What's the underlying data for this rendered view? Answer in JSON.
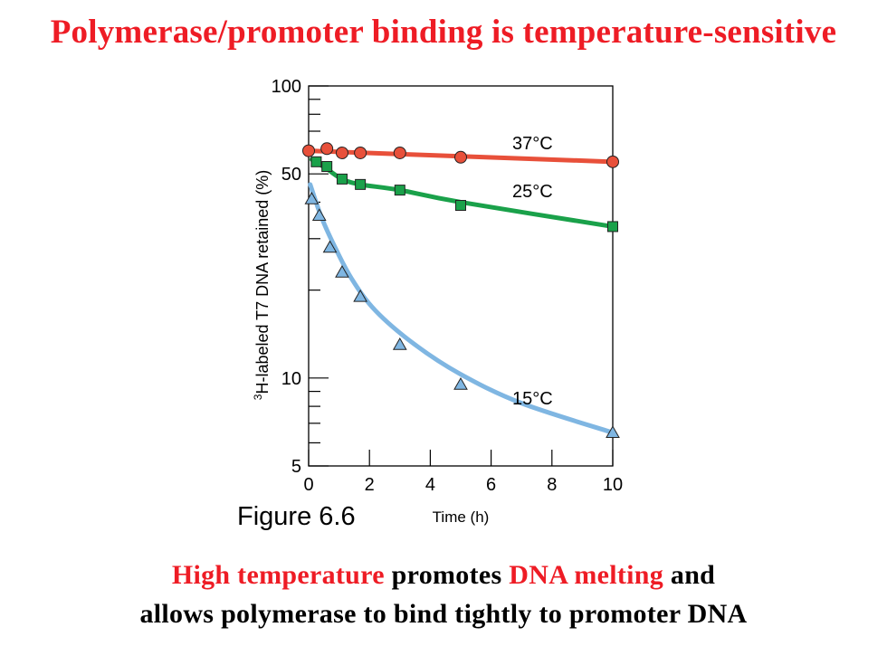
{
  "title": "Polymerase/promoter binding is temperature-sensitive",
  "figure_label": "Figure 6.6",
  "caption": {
    "line1": [
      {
        "text": "High temperature",
        "highlight": true
      },
      {
        "text": " promotes ",
        "highlight": false
      },
      {
        "text": "DNA melting",
        "highlight": true
      },
      {
        "text": " and",
        "highlight": false
      }
    ],
    "line2": "allows polymerase to bind tightly to promoter DNA"
  },
  "colors": {
    "title": "#ee1c25",
    "highlight": "#ee1c25",
    "series_37": "#e8503a",
    "series_25": "#1aa14a",
    "series_15": "#7fb6e2"
  },
  "chart_data": {
    "type": "line",
    "xlabel": "Time (h)",
    "ylabel_superscript": "3",
    "ylabel": "H-labeled T7 DNA retained (%)",
    "xlim": [
      0,
      10
    ],
    "ylim": [
      5,
      100
    ],
    "y_scale": "log",
    "x_ticks": [
      "0",
      "2",
      "4",
      "6",
      "8",
      "10"
    ],
    "y_tick_labels": [
      "5",
      "10",
      "50",
      "100"
    ],
    "grid": false,
    "series": [
      {
        "name": "37°C",
        "marker": "circle",
        "x": [
          0,
          0.6,
          1.1,
          1.7,
          3.0,
          5.0,
          10.0
        ],
        "y": [
          60,
          61,
          59,
          59,
          59,
          57,
          55
        ],
        "fit": [
          [
            0,
            60
          ],
          [
            10,
            55
          ]
        ]
      },
      {
        "name": "25°C",
        "marker": "square",
        "x": [
          0.25,
          0.6,
          1.1,
          1.7,
          3.0,
          5.0,
          10.0
        ],
        "y": [
          55,
          53,
          48,
          46,
          44,
          39,
          33
        ],
        "fit": [
          [
            0.1,
            56
          ],
          [
            0.6,
            52
          ],
          [
            1.1,
            48
          ],
          [
            1.7,
            46
          ],
          [
            3.0,
            44
          ],
          [
            5.0,
            40
          ],
          [
            10.0,
            33
          ]
        ]
      },
      {
        "name": "15°C",
        "marker": "triangle",
        "x": [
          0.1,
          0.35,
          0.7,
          1.1,
          1.7,
          3.0,
          5.0,
          10.0
        ],
        "y": [
          41,
          36,
          28,
          23,
          19,
          13,
          9.5,
          6.5
        ],
        "fit": [
          [
            0.05,
            46
          ],
          [
            0.4,
            36
          ],
          [
            0.8,
            29
          ],
          [
            1.4,
            22
          ],
          [
            2.2,
            17
          ],
          [
            3.5,
            13
          ],
          [
            5.0,
            10.3
          ],
          [
            7.0,
            8.2
          ],
          [
            10.0,
            6.5
          ]
        ]
      }
    ]
  }
}
